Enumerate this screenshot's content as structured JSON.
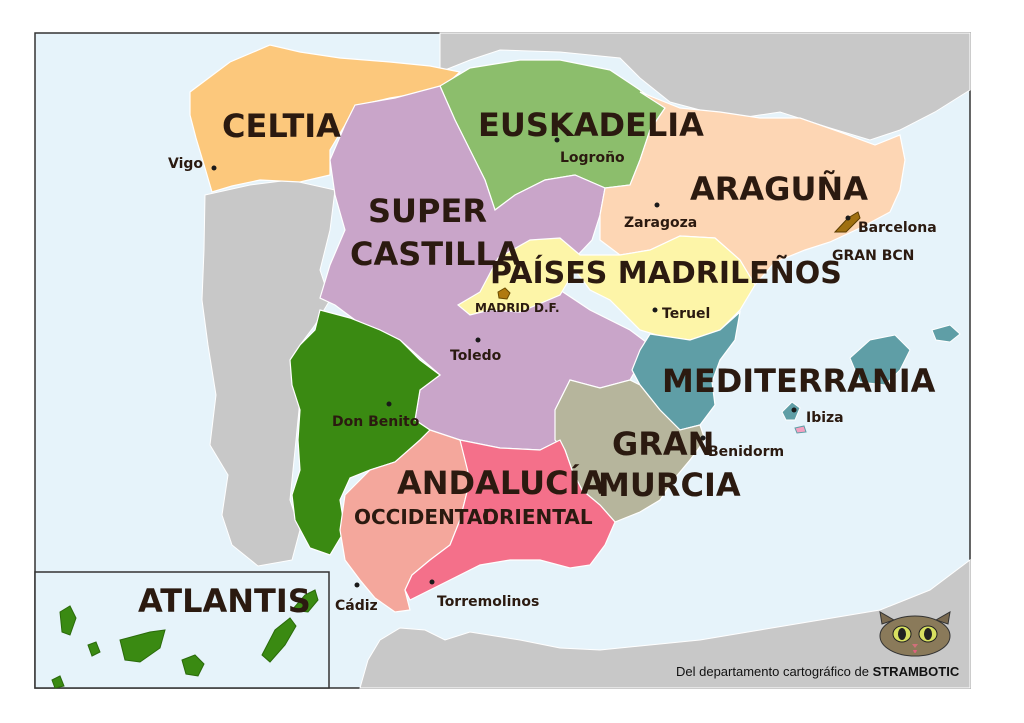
{
  "regions": {
    "celtia": "CELTIA",
    "euskadelia": "EUSKADELIA",
    "aragunya": "ARAGUÑA",
    "super_castilla_1": "SUPER",
    "super_castilla_2": "CASTILLA",
    "paises_madrilenos": "PAÍSES MADRILEÑOS",
    "mediterrania": "MEDITERRANIA",
    "gran_murcia_1": "GRAN",
    "gran_murcia_2": "MURCIA",
    "andalucia": "ANDALUCÍA",
    "andalucia_occidental": "OCCIDENTAL",
    "andalucia_oriental": "ORIENTAL",
    "atlantis": "ATLANTIS",
    "gran_bcn": "GRAN BCN",
    "madrid_df": "MADRID D.F."
  },
  "cities": {
    "vigo": "Vigo",
    "logrono": "Logroño",
    "zaragoza": "Zaragoza",
    "barcelona": "Barcelona",
    "teruel": "Teruel",
    "toledo": "Toledo",
    "don_benito": "Don Benito",
    "ibiza": "Ibiza",
    "benidorm": "Benidorm",
    "cadiz": "Cádiz",
    "torremolinos": "Torremolinos"
  },
  "credit": {
    "prefix": "Del departamento cartográfico de ",
    "brand": "STRAMBOTIC"
  },
  "colors": {
    "sea": "#e6f3fa",
    "foreign_land": "#c8c8c8",
    "celtia": "#fcc87c",
    "euskadelia": "#8cbe6c",
    "aragunya": "#fdd6b4",
    "super_castilla": "#c9a5c9",
    "paises_madrilenos": "#fdf5a8",
    "mediterrania": "#5f9ea6",
    "gran_murcia": "#b6b59c",
    "andalucia_occidental": "#f4a79c",
    "andalucia_oriental": "#f4708a",
    "don_benito_region": "#3a8a12",
    "atlantis": "#3a8a12"
  }
}
